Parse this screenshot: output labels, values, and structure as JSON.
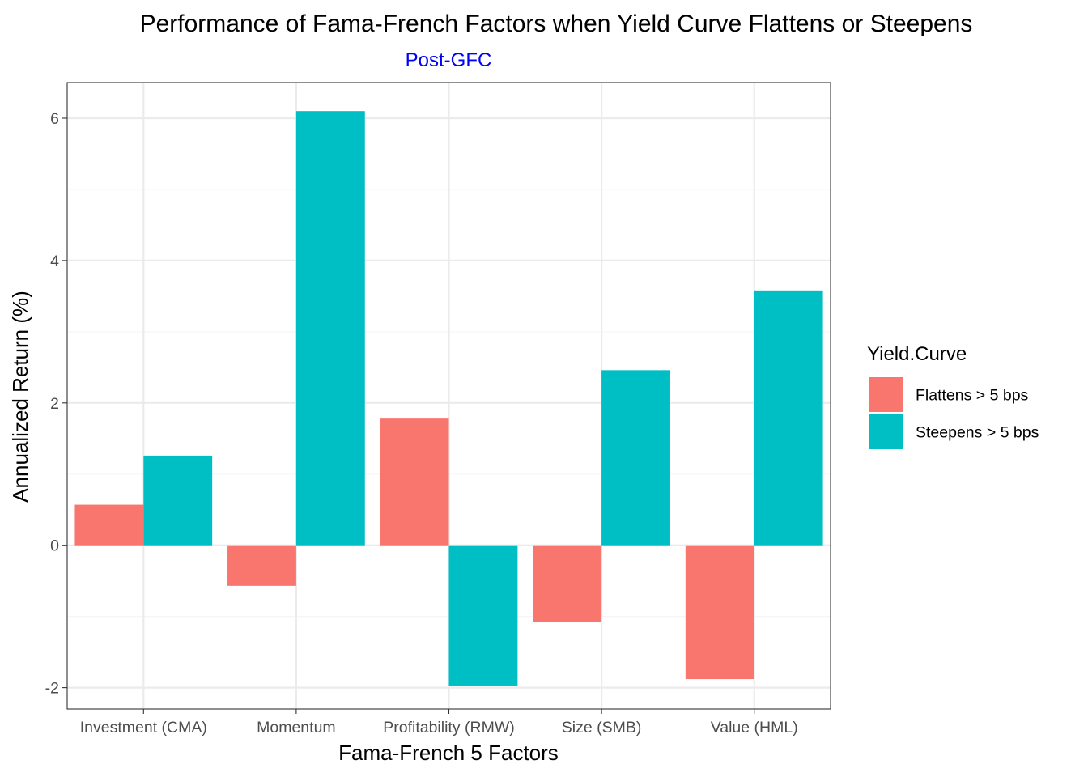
{
  "chart_data": {
    "type": "bar",
    "title": "Performance of Fama-French Factors when Yield Curve Flattens or Steepens",
    "subtitle": "Post-GFC",
    "subtitle_color": "#0000ff",
    "xlabel": "Fama-French 5 Factors",
    "ylabel": "Annualized Return (%)",
    "categories": [
      "Investment (CMA)",
      "Momentum",
      "Profitability (RMW)",
      "Size (SMB)",
      "Value (HML)"
    ],
    "series": [
      {
        "name": "Flattens > 5 bps",
        "color": "#f8766d",
        "values": [
          0.57,
          -0.57,
          1.78,
          -1.08,
          -1.88
        ]
      },
      {
        "name": "Steepens > 5 bps",
        "color": "#00bfc4",
        "values": [
          1.26,
          6.1,
          -1.97,
          2.46,
          3.58
        ]
      }
    ],
    "ylim": [
      -2.3,
      6.5
    ],
    "yticks": [
      -2,
      0,
      2,
      4,
      6
    ],
    "ytick_labels": [
      "-2",
      "0",
      "2",
      "4",
      "6"
    ],
    "grid": true,
    "legend": {
      "title": "Yield.Curve",
      "position": "right"
    },
    "theme": {
      "panel_border": "#333333",
      "grid_major": "#ebebeb",
      "grid_minor": "#f5f5f5"
    }
  }
}
